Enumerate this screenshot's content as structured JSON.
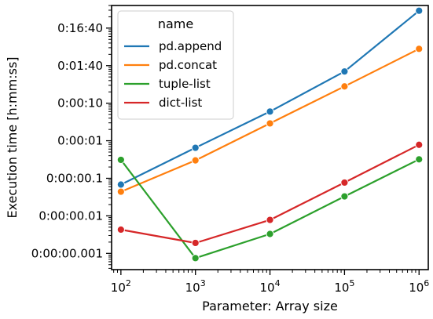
{
  "chart_data": {
    "type": "line",
    "xlabel": "Parameter: Array size",
    "ylabel": "Execution time [h:mm:ss]",
    "x_scale": "log",
    "y_scale": "log",
    "x": [
      100,
      1000,
      10000,
      100000,
      1000000
    ],
    "x_ticks": [
      {
        "value": 100,
        "base": "10",
        "exp": "2"
      },
      {
        "value": 1000,
        "base": "10",
        "exp": "3"
      },
      {
        "value": 10000,
        "base": "10",
        "exp": "4"
      },
      {
        "value": 100000,
        "base": "10",
        "exp": "5"
      },
      {
        "value": 1000000,
        "base": "10",
        "exp": "6"
      }
    ],
    "y_ticks": [
      {
        "value": 0.001,
        "label": "0:00:00.001"
      },
      {
        "value": 0.01,
        "label": "0:00:00.01"
      },
      {
        "value": 0.1,
        "label": "0:00:00.1"
      },
      {
        "value": 1,
        "label": "0:00:01"
      },
      {
        "value": 10,
        "label": "0:00:10"
      },
      {
        "value": 100,
        "label": "0:01:40"
      },
      {
        "value": 1000,
        "label": "0:16:40"
      }
    ],
    "xlim": [
      75,
      1330000
    ],
    "ylim": [
      0.00037,
      4000
    ],
    "legend": {
      "title": "name",
      "position": "top-left"
    },
    "series": [
      {
        "name": "pd.append",
        "color": "#1f77b4",
        "values": [
          0.068,
          0.65,
          6.0,
          70,
          2900
        ]
      },
      {
        "name": "pd.concat",
        "color": "#ff7f0e",
        "values": [
          0.044,
          0.3,
          2.9,
          28,
          280
        ]
      },
      {
        "name": "tuple-list",
        "color": "#2ca02c",
        "values": [
          0.31,
          0.00075,
          0.0033,
          0.033,
          0.32
        ]
      },
      {
        "name": "dict-list",
        "color": "#d62728",
        "values": [
          0.0043,
          0.0019,
          0.0078,
          0.077,
          0.78
        ]
      }
    ]
  }
}
